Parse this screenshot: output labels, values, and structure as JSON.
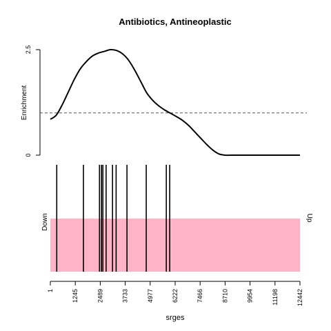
{
  "chart_data": {
    "type": "line",
    "title": "Antibiotics, Antineoplastic",
    "xlabel": "srges",
    "ylabel": "Enrichment",
    "xlim": [
      1,
      12442
    ],
    "ylim": [
      0,
      2.5
    ],
    "x_ticks": [
      "1",
      "1245",
      "2489",
      "3733",
      "4977",
      "6222",
      "7466",
      "8710",
      "9954",
      "11198",
      "12442"
    ],
    "y_ticks": [
      "0",
      "2.5"
    ],
    "reference_line": {
      "y": 1,
      "style": "dashed"
    },
    "enrichment_curve": {
      "x": [
        1,
        300,
        600,
        900,
        1200,
        1500,
        1800,
        2100,
        2400,
        2700,
        3000,
        3300,
        3600,
        3900,
        4200,
        4500,
        4800,
        5100,
        5400,
        5700,
        6000,
        6300,
        6600,
        6900,
        7200,
        7500,
        7800,
        8100,
        8400,
        8700,
        9000,
        9500,
        10000,
        11000,
        12000,
        12442
      ],
      "y": [
        0.85,
        0.95,
        1.2,
        1.5,
        1.8,
        2.05,
        2.22,
        2.35,
        2.42,
        2.46,
        2.5,
        2.48,
        2.4,
        2.25,
        2.02,
        1.75,
        1.48,
        1.3,
        1.17,
        1.07,
        0.99,
        0.91,
        0.82,
        0.7,
        0.55,
        0.4,
        0.25,
        0.12,
        0.03,
        0.0,
        0.0,
        0.0,
        0.0,
        0.0,
        0.0,
        0.0
      ]
    },
    "hit_positions": [
      320,
      1650,
      2450,
      2550,
      2620,
      2780,
      3100,
      3280,
      3820,
      4780,
      5780,
      5950
    ],
    "barcode": {
      "left_label": "Down",
      "right_label": "Up",
      "band_color": "#FFB3C6"
    },
    "grid": false
  }
}
